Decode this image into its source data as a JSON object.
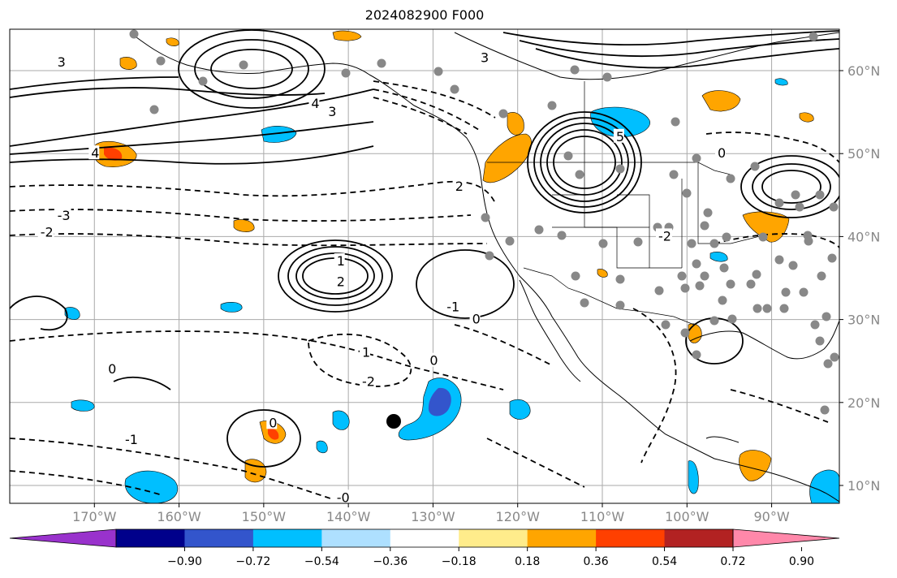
{
  "title": "2024082900 F000",
  "map": {
    "lat_labels": [
      "60°N",
      "50°N",
      "40°N",
      "30°N",
      "20°N",
      "10°N"
    ],
    "lon_labels": [
      "170°W",
      "160°W",
      "150°W",
      "140°W",
      "130°W",
      "120°W",
      "110°W",
      "100°W",
      "90°W"
    ],
    "highs_lows": [
      {
        "label": "2",
        "lon": -141,
        "lat": 34.5
      },
      {
        "label": "1",
        "lon": -141,
        "lat": 37
      },
      {
        "label": "5",
        "lon": -108,
        "lat": 52
      },
      {
        "label": "4",
        "lon": -144,
        "lat": 56
      },
      {
        "label": "3",
        "lon": -142,
        "lat": 55
      },
      {
        "label": "3",
        "lon": -124,
        "lat": 61.5
      },
      {
        "label": "3",
        "lon": -174,
        "lat": 61
      },
      {
        "label": "4",
        "lon": -170,
        "lat": 50
      },
      {
        "label": "2",
        "lon": -127,
        "lat": 46
      },
      {
        "label": "-3",
        "lon": -174,
        "lat": 42.5
      },
      {
        "label": "-2",
        "lon": -176,
        "lat": 40.5
      },
      {
        "label": "0",
        "lon": -125,
        "lat": 30
      },
      {
        "label": "-1",
        "lon": -128,
        "lat": 31.5
      },
      {
        "label": "1",
        "lon": -138,
        "lat": 26
      },
      {
        "label": "-2",
        "lon": -138,
        "lat": 22.5
      },
      {
        "label": "0",
        "lon": -130,
        "lat": 25
      },
      {
        "label": "-1",
        "lon": -166,
        "lat": 15.5
      },
      {
        "label": "0",
        "lon": -149,
        "lat": 17.5
      },
      {
        "label": "-0",
        "lon": -141,
        "lat": 8.5
      },
      {
        "label": "0",
        "lon": -96,
        "lat": 50
      },
      {
        "label": "-2",
        "lon": -103,
        "lat": 40
      },
      {
        "label": "0",
        "lon": -168,
        "lat": 24
      }
    ]
  },
  "colorbar": {
    "ticks": [
      "−0.90",
      "−0.72",
      "−0.54",
      "−0.36",
      "−0.18",
      "0.18",
      "0.36",
      "0.54",
      "0.72",
      "0.90"
    ],
    "colors": [
      "#9932cc",
      "#00008b",
      "#3355cc",
      "#00bfff",
      "#aee0ff",
      "#ffffff",
      "#ffec8b",
      "#ffa500",
      "#ff4000",
      "#b22222",
      "#ff88aa"
    ]
  }
}
